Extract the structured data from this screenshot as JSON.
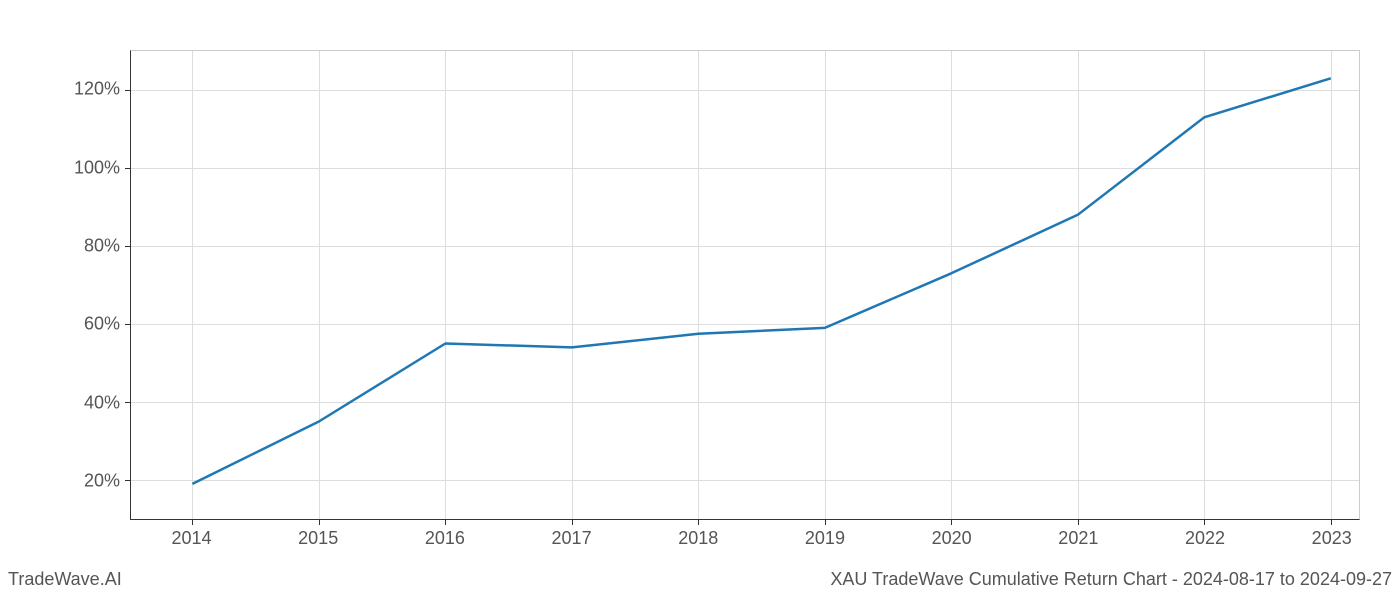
{
  "chart": {
    "type": "line",
    "background_color": "#ffffff",
    "grid_color": "#dddddd",
    "axis_color": "#333333",
    "border_color": "#cccccc",
    "line_color": "#1f77b4",
    "line_width": 2.5,
    "tick_label_color": "#555555",
    "tick_label_fontsize": 18,
    "footer_fontsize": 18,
    "x_categories": [
      "2014",
      "2015",
      "2016",
      "2017",
      "2018",
      "2019",
      "2020",
      "2021",
      "2022",
      "2023"
    ],
    "x_positions_pct": [
      5,
      15.3,
      25.6,
      35.9,
      46.2,
      56.5,
      66.8,
      77.1,
      87.4,
      97.7
    ],
    "y_ticks": [
      20,
      40,
      60,
      80,
      100,
      120
    ],
    "y_tick_labels": [
      "20%",
      "40%",
      "60%",
      "80%",
      "100%",
      "120%"
    ],
    "y_min": 10,
    "y_max": 130,
    "y_suffix": "%",
    "series": [
      {
        "name": "cumulative_return",
        "values": [
          19,
          35,
          55,
          54,
          57.5,
          59,
          73,
          88,
          113,
          123
        ]
      }
    ]
  },
  "footer": {
    "left": "TradeWave.AI",
    "right": "XAU TradeWave Cumulative Return Chart - 2024-08-17 to 2024-09-27"
  }
}
